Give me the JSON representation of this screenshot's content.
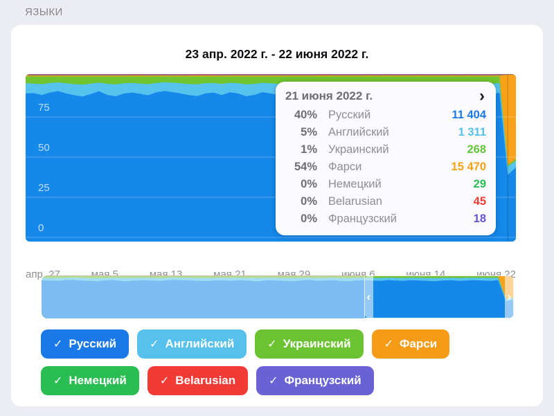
{
  "section_title": "ЯЗЫКИ",
  "card": {
    "title": "23 апр. 2022 г. - 22 июня 2022 г."
  },
  "tooltip": {
    "date": "21 июня 2022 г.",
    "chevron_icon": "›",
    "rows": [
      {
        "percent": "40%",
        "label": "Русский",
        "value": "11 404",
        "color": "#1a78e8"
      },
      {
        "percent": "5%",
        "label": "Английский",
        "value": "1 311",
        "color": "#55c1ec"
      },
      {
        "percent": "1%",
        "label": "Украинский",
        "value": "268",
        "color": "#64c339"
      },
      {
        "percent": "54%",
        "label": "Фарси",
        "value": "15 470",
        "color": "#f8a016"
      },
      {
        "percent": "0%",
        "label": "Немецкий",
        "value": "29",
        "color": "#2abd52"
      },
      {
        "percent": "0%",
        "label": "Belarusian",
        "value": "45",
        "color": "#f23b34"
      },
      {
        "percent": "0%",
        "label": "Французский",
        "value": "18",
        "color": "#6054d3"
      }
    ]
  },
  "chart_data": {
    "type": "area",
    "stacked": "percent",
    "title": "23 апр. 2022 г. - 22 июня 2022 г.",
    "x_ticks": [
      "апр. 27",
      "мая 5",
      "мая 13",
      "мая 21",
      "мая 29",
      "июня 6",
      "июня 14",
      "июня 22"
    ],
    "y_ticks": [
      0,
      25,
      50,
      75
    ],
    "ylim": [
      0,
      100
    ],
    "grid": true,
    "legend_position": "bottom-chips",
    "selected_index": 59,
    "selected_label": "21 июня 2022 г.",
    "series": [
      {
        "name": "Русский",
        "color": "#1588ea",
        "values": [
          88,
          87.4,
          86.3,
          87.8,
          88.9,
          87.3,
          86,
          85.4,
          86.9,
          88.4,
          86.4,
          85.4,
          86.9,
          88,
          87.4,
          86,
          87.9,
          88.9,
          88,
          87,
          85.5,
          86.4,
          87.9,
          87,
          86,
          87.9,
          87.4,
          85.5,
          86.5,
          88,
          87,
          86,
          85.5,
          87,
          88.4,
          86.5,
          87.4,
          88,
          86,
          85.5,
          87,
          88,
          87.4,
          86.4,
          88,
          87,
          86,
          87.9,
          87.4,
          86.4,
          85.5,
          87,
          88,
          86.5,
          87.4,
          88,
          87,
          86.4,
          88,
          40,
          44
        ]
      },
      {
        "name": "Английский",
        "color": "#56c2ee",
        "values": [
          6,
          5.6,
          6.4,
          5.6,
          5.1,
          6,
          6.5,
          7,
          6,
          5.1,
          6.5,
          7,
          6,
          5.6,
          6,
          6.5,
          5.5,
          5.1,
          5.6,
          6,
          6.5,
          7,
          6,
          5.6,
          6.5,
          5.6,
          6,
          7,
          6.5,
          5.6,
          6,
          6.5,
          7,
          6,
          5.1,
          6.5,
          6,
          5.6,
          6.5,
          7,
          6,
          5.6,
          6,
          6.5,
          5.6,
          6,
          6.5,
          5.6,
          6,
          6.5,
          7,
          6,
          5.6,
          6.5,
          6,
          5.6,
          6,
          6.5,
          5.6,
          5,
          4
        ]
      },
      {
        "name": "Украинский",
        "color": "#70c42f",
        "values": [
          4,
          4.2,
          4.5,
          3.8,
          3.5,
          4,
          4.5,
          4.8,
          4.2,
          3.6,
          4.3,
          4.6,
          4,
          3.8,
          4.2,
          4.5,
          3.8,
          3.4,
          3.6,
          4,
          4.4,
          4.6,
          4,
          3.8,
          4.3,
          3.7,
          4,
          4.6,
          4.3,
          3.7,
          4,
          4.3,
          4.6,
          4,
          3.5,
          4.2,
          4,
          3.8,
          4.4,
          4.6,
          4,
          3.7,
          4,
          4.3,
          3.8,
          4,
          4.3,
          3.7,
          4,
          4.3,
          4.6,
          4,
          3.8,
          4.3,
          4,
          3.7,
          4,
          4.3,
          3.8,
          1,
          1
        ]
      },
      {
        "name": "Фарси",
        "color": "#f8a219",
        "base": 0.45,
        "overrides": {
          "59": 54,
          "60": 50
        }
      },
      {
        "name": "Немецкий",
        "color": "#2dbd55",
        "base": 0.25,
        "overrides": {
          "59": 0.12,
          "60": 0.12
        }
      },
      {
        "name": "Belarusian",
        "color": "#f34c3f",
        "base": 0.5,
        "overrides": {
          "59": 0.18,
          "60": 0.18
        }
      },
      {
        "name": "Французский",
        "color": "#6d62d9",
        "base": 0.25,
        "overrides": {
          "59": 0.12,
          "60": 0.12
        }
      }
    ]
  },
  "minimap": {
    "selection_start_pct": 68.3,
    "selection_end_pct": 100,
    "handle_left_icon": "‹",
    "handle_right_icon": "›"
  },
  "legend": {
    "check_glyph": "✓",
    "rows": [
      [
        {
          "label": "Русский",
          "color": "#1a78e8"
        },
        {
          "label": "Английский",
          "color": "#55c1ec"
        },
        {
          "label": "Украинский",
          "color": "#6cc331"
        },
        {
          "label": "Фарси",
          "color": "#f59b16"
        }
      ],
      [
        {
          "label": "Немецкий",
          "color": "#2abd52"
        },
        {
          "label": "Belarusian",
          "color": "#f23b34"
        },
        {
          "label": "Французский",
          "color": "#6a61d5"
        }
      ]
    ]
  }
}
